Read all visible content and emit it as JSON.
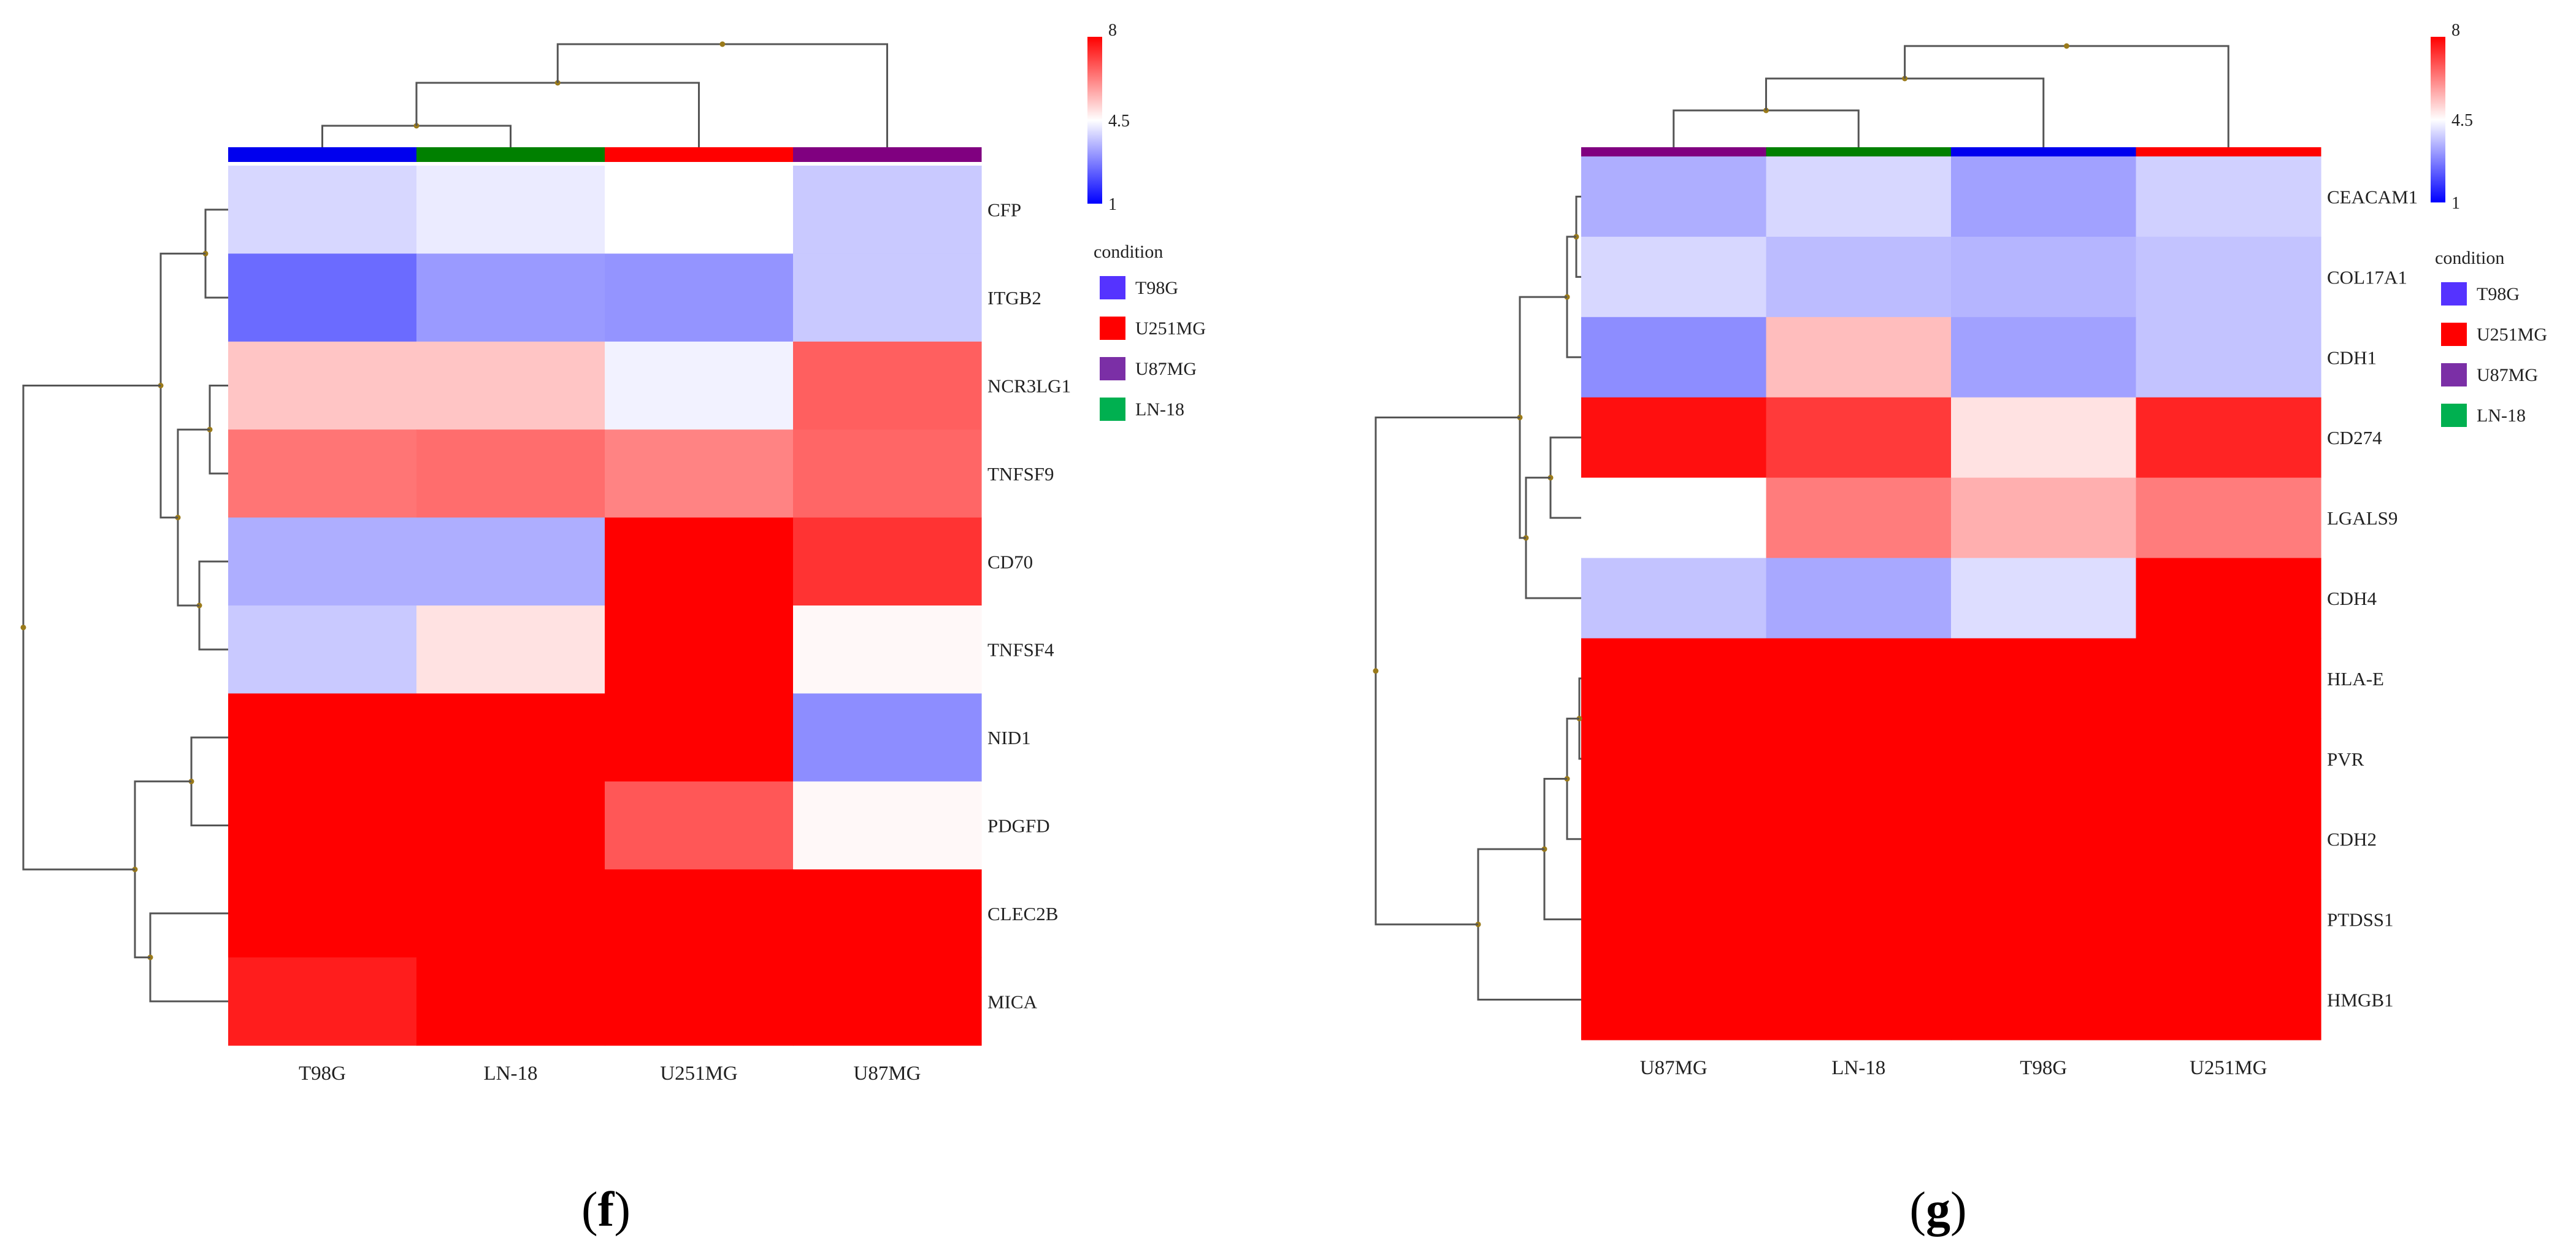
{
  "colors": {
    "T98G": "#0000ee",
    "LN-18": "#008000",
    "U251MG": "#ff0000",
    "U87MG": "#800080",
    "legend_T98G": "#5533ff",
    "legend_U251MG": "#ff0000",
    "legend_U87MG": "#7b2fa6",
    "legend_LN18": "#00b050",
    "scale_low": "#0000ff",
    "scale_mid": "#ffffff",
    "scale_high": "#ff0000",
    "dendro_line": "#555555",
    "dendro_node": "#9a7a1a"
  },
  "chart_data": [
    {
      "type": "heatmap",
      "panel_label_prefix": "(",
      "panel_label_letter": "f",
      "panel_label_suffix": ")",
      "columns": [
        "T98G",
        "LN-18",
        "U251MG",
        "U87MG"
      ],
      "rows": [
        "CFP",
        "ITGB2",
        "NCR3LG1",
        "TNFSF9",
        "CD70",
        "TNFSF4",
        "NID1",
        "PDGFD",
        "CLEC2B",
        "MICA"
      ],
      "values": [
        [
          3.9,
          4.2,
          4.5,
          3.7
        ],
        [
          2.3,
          3.0,
          2.9,
          3.7
        ],
        [
          5.3,
          5.3,
          4.3,
          6.7
        ],
        [
          6.4,
          6.5,
          6.2,
          6.6
        ],
        [
          3.3,
          3.3,
          8.0,
          7.3
        ],
        [
          3.7,
          4.9,
          8.0,
          4.6
        ],
        [
          8.0,
          8.0,
          8.0,
          2.8
        ],
        [
          8.0,
          8.0,
          6.8,
          4.6
        ],
        [
          8.0,
          8.0,
          8.0,
          8.0
        ],
        [
          7.6,
          8.0,
          8.0,
          8.0
        ]
      ],
      "scale": {
        "min": 1,
        "mid": 4.5,
        "max": 8,
        "tick_min": "1",
        "tick_mid": "4.5",
        "tick_max": "8"
      },
      "legend_title": "condition",
      "legend_items": [
        "T98G",
        "U251MG",
        "U87MG",
        "LN-18"
      ],
      "col_label_overrides": {
        "NCR3LG1": "NCR3LG1"
      }
    },
    {
      "type": "heatmap",
      "panel_label_prefix": "(",
      "panel_label_letter": "g",
      "panel_label_suffix": ")",
      "columns": [
        "U87MG",
        "LN-18",
        "T98G",
        "U251MG"
      ],
      "rows": [
        "CEACAM1",
        "COL17A1",
        "CDH1",
        "CD274",
        "LGALS9",
        "CDH4",
        "HLA-E",
        "PVR",
        "CDH2",
        "PTDSS1",
        "HMGB1"
      ],
      "values": [
        [
          3.3,
          3.9,
          3.1,
          3.8
        ],
        [
          3.9,
          3.5,
          3.4,
          3.6
        ],
        [
          2.8,
          5.4,
          3.1,
          3.6
        ],
        [
          7.8,
          7.2,
          4.9,
          7.5
        ],
        [
          4.5,
          6.3,
          5.6,
          6.3
        ],
        [
          3.6,
          3.2,
          4.0,
          8.0
        ],
        [
          8.0,
          8.0,
          8.0,
          8.0
        ],
        [
          8.0,
          8.0,
          8.0,
          8.0
        ],
        [
          8.0,
          8.0,
          8.0,
          8.0
        ],
        [
          8.0,
          8.0,
          8.0,
          8.0
        ],
        [
          8.0,
          8.0,
          8.0,
          8.0
        ]
      ],
      "scale": {
        "min": 1,
        "mid": 4.5,
        "max": 8,
        "tick_min": "1",
        "tick_mid": "4.5",
        "tick_max": "8"
      },
      "legend_title": "condition",
      "legend_items": [
        "T98G",
        "U251MG",
        "U87MG",
        "LN-18"
      ]
    }
  ]
}
